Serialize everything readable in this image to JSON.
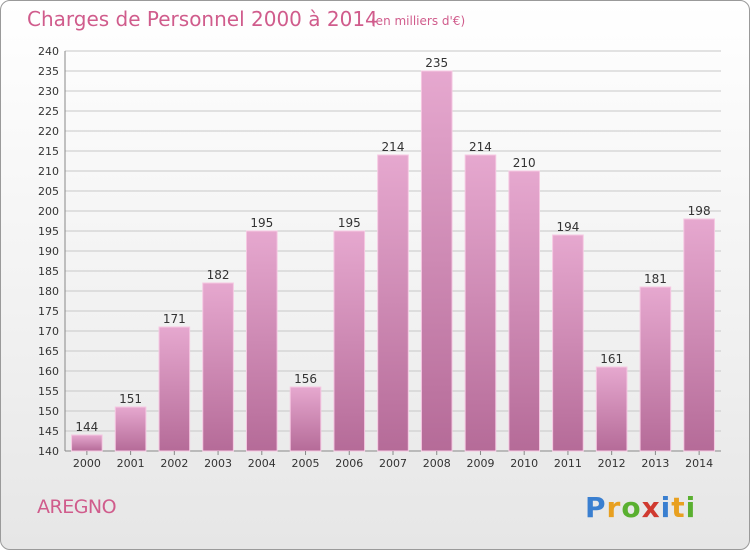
{
  "header": {
    "title": "Charges de Personnel 2000 à 2014",
    "subtitle": "(en milliers d'€)"
  },
  "commune": "AREGNO",
  "logo": {
    "text": "Proxiti",
    "letters": [
      {
        "char": "P",
        "color": "#3a7fd0"
      },
      {
        "char": "r",
        "color": "#e8a020"
      },
      {
        "char": "o",
        "color": "#5ab030"
      },
      {
        "char": "x",
        "color": "#d03a30"
      },
      {
        "char": "i",
        "color": "#3a7fd0"
      },
      {
        "char": "t",
        "color": "#e8a020"
      },
      {
        "char": "i",
        "color": "#5ab030"
      }
    ]
  },
  "colors": {
    "bar_top": "#e6a8cf",
    "bar_bottom": "#b56b98",
    "bar_edge": "#f5c8e2",
    "text": "#d05c8c",
    "axis_text": "#333333",
    "grid": "#c8c8c8"
  },
  "chart_data": {
    "type": "bar",
    "title": "Charges de Personnel 2000 à 2014",
    "subtitle": "(en milliers d'€)",
    "categories": [
      "2000",
      "2001",
      "2002",
      "2003",
      "2004",
      "2005",
      "2006",
      "2007",
      "2008",
      "2009",
      "2010",
      "2011",
      "2012",
      "2013",
      "2014"
    ],
    "values": [
      144,
      151,
      171,
      182,
      195,
      156,
      195,
      214,
      235,
      214,
      210,
      194,
      161,
      181,
      198
    ],
    "ylim": [
      140,
      240
    ],
    "yticks": [
      140,
      145,
      150,
      155,
      160,
      165,
      170,
      175,
      180,
      185,
      190,
      195,
      200,
      205,
      210,
      215,
      220,
      225,
      230,
      235,
      240
    ],
    "grid": true,
    "legend": "none"
  }
}
